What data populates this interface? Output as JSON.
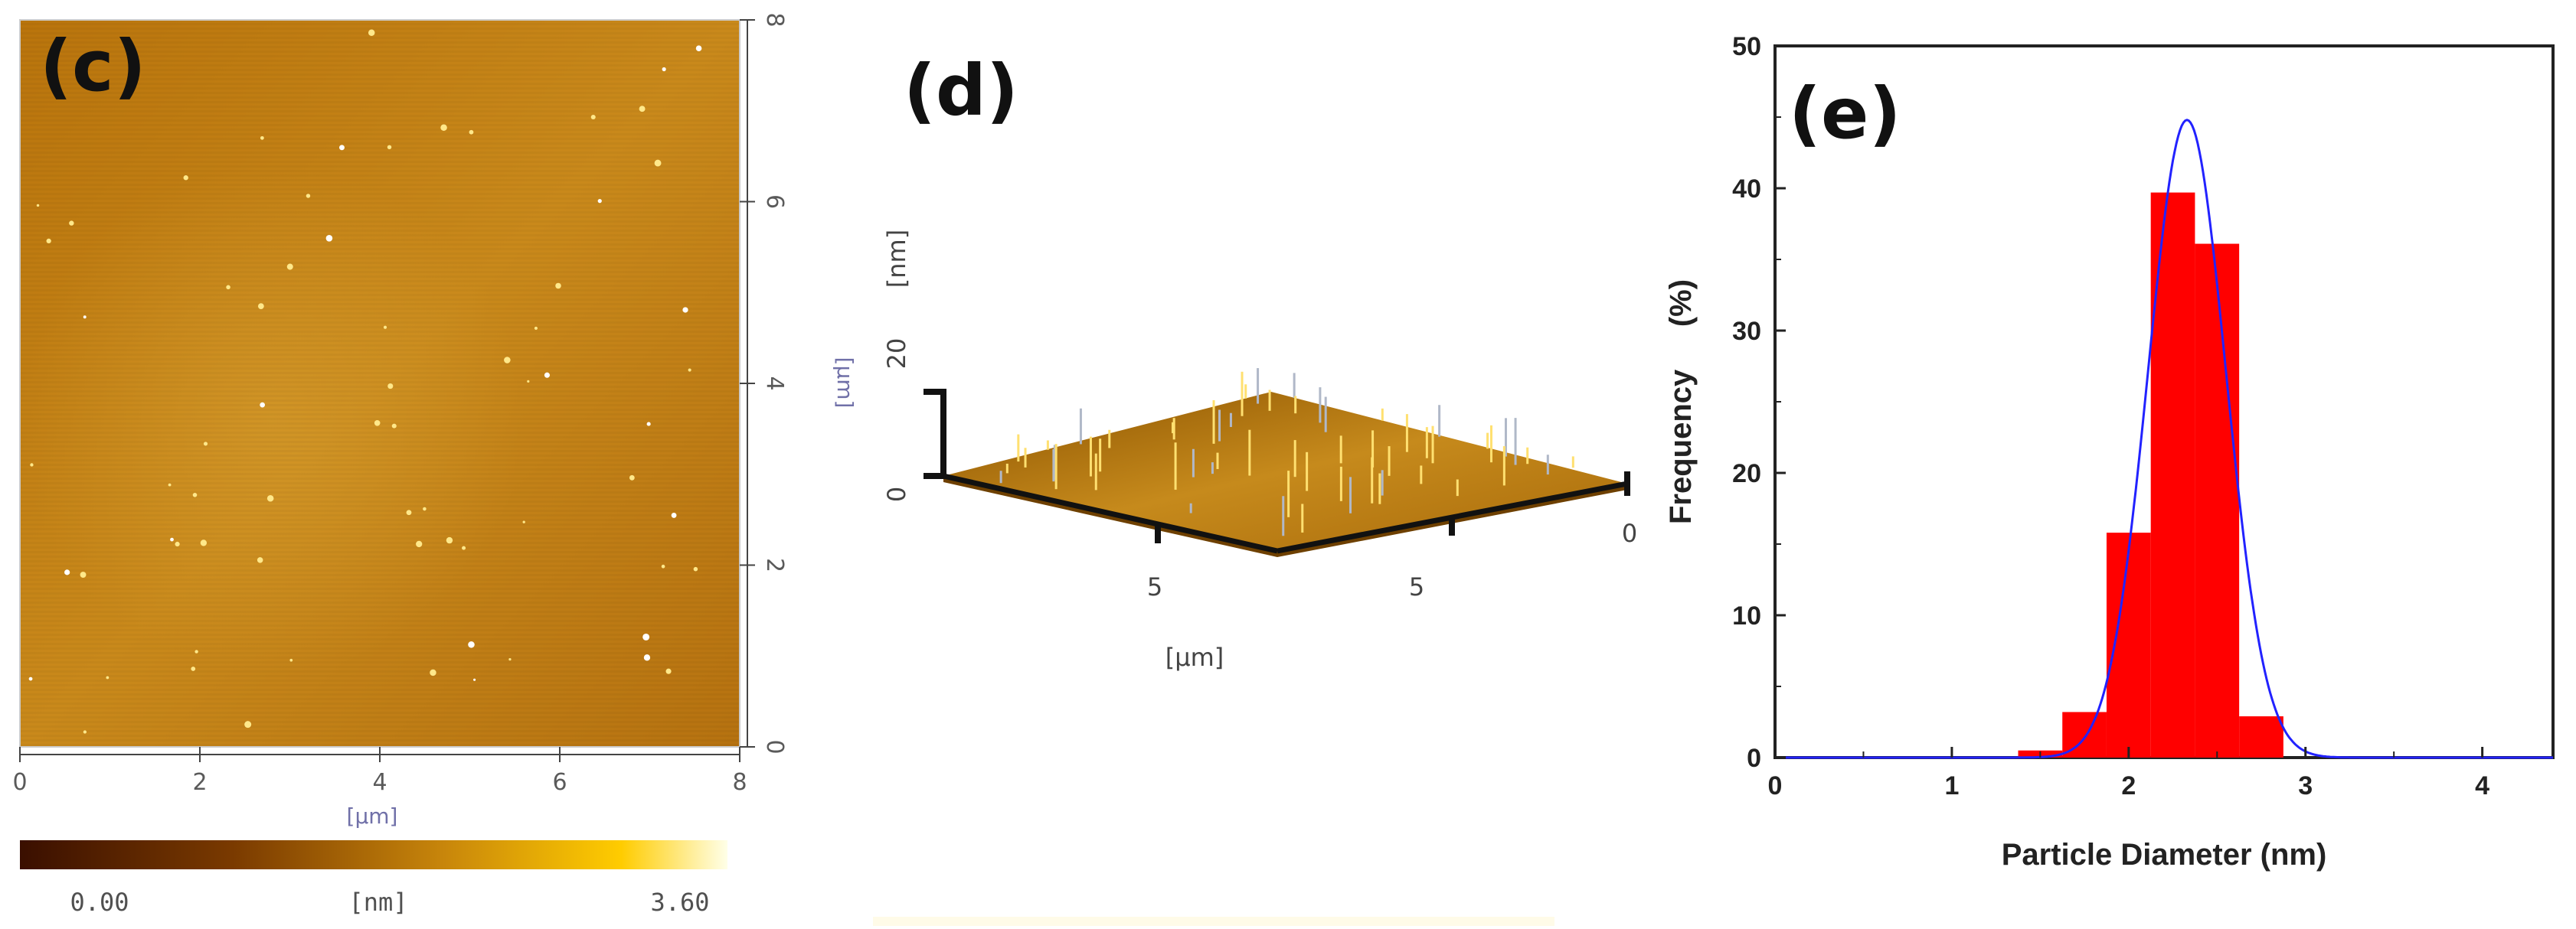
{
  "panels": {
    "c": {
      "label": "(c)",
      "x_ticks": [
        "0",
        "2",
        "4",
        "6",
        "8"
      ],
      "y_ticks": [
        "0",
        "2",
        "4",
        "6",
        "8"
      ],
      "x_unit": "[µm]",
      "y_unit": "[µm]",
      "colorbar": {
        "min_label": "0.00",
        "unit": "[nm]",
        "max_label": "3.60",
        "min": 0.0,
        "max": 3.6
      },
      "colors": {
        "dark": "#4a1400",
        "mid": "#b8860b",
        "light": "#ffe65c"
      }
    },
    "d": {
      "label": "(d)",
      "z_unit": "[nm]",
      "z_ticks": [
        "20",
        "0"
      ],
      "x_ticks": [
        "5",
        "5",
        "0"
      ],
      "xy_unit": "[µm]"
    },
    "e": {
      "label": "(e)"
    }
  },
  "chart_data": {
    "type": "bar",
    "xlabel": "Particle Diameter   (nm)",
    "ylabel": "Frequency     (%)",
    "xlim": [
      0,
      4.4
    ],
    "ylim": [
      0,
      50
    ],
    "x_ticks": [
      "0",
      "1",
      "2",
      "3",
      "4"
    ],
    "y_ticks": [
      "0",
      "10",
      "20",
      "30",
      "40",
      "50"
    ],
    "bin_width": 0.25,
    "bars": [
      {
        "x": 1.5,
        "value": 0.5
      },
      {
        "x": 1.75,
        "value": 3.2
      },
      {
        "x": 2.0,
        "value": 15.8
      },
      {
        "x": 2.25,
        "value": 39.7
      },
      {
        "x": 2.5,
        "value": 36.1
      },
      {
        "x": 2.75,
        "value": 2.9
      }
    ],
    "fit": {
      "type": "gaussian",
      "center": 2.33,
      "sigma": 0.22,
      "amplitude": 44.8
    },
    "colors": {
      "bars": "#ff0000",
      "fit": "#2222ff"
    }
  }
}
